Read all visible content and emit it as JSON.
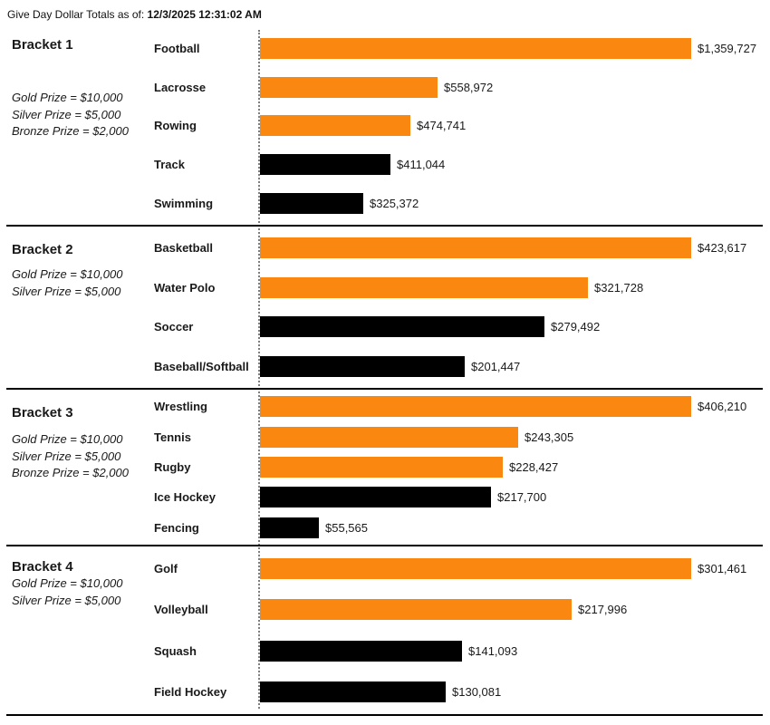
{
  "header": {
    "title_prefix": "Give Day Dollar Totals as of:",
    "timestamp": "12/3/2025 12:31:02 AM"
  },
  "colors": {
    "bar_orange": "#FA870F",
    "bar_black": "#000000",
    "divider": "#000000",
    "axis_dotted": "#7D7D7D",
    "text": "#1A1A1A"
  },
  "chart_data": {
    "type": "bar",
    "orientation": "horizontal",
    "title": "Give Day Dollar Totals",
    "as_of": "12/3/2025 12:31:02 AM",
    "value_format": "USD",
    "scaling": "bars scaled to max value within each bracket",
    "legend": "orange = prize-winning positions, black = others",
    "brackets": [
      {
        "name": "Bracket 1",
        "prizes": [
          "Gold Prize = $10,000",
          "Silver Prize = $5,000",
          "Bronze Prize = $2,000"
        ],
        "bars": [
          {
            "label": "Football",
            "value": 1359727,
            "display": "$1,359,727",
            "color": "orange"
          },
          {
            "label": "Lacrosse",
            "value": 558972,
            "display": "$558,972",
            "color": "orange"
          },
          {
            "label": "Rowing",
            "value": 474741,
            "display": "$474,741",
            "color": "orange"
          },
          {
            "label": "Track",
            "value": 411044,
            "display": "$411,044",
            "color": "black"
          },
          {
            "label": "Swimming",
            "value": 325372,
            "display": "$325,372",
            "color": "black"
          }
        ]
      },
      {
        "name": "Bracket 2",
        "prizes": [
          "Gold Prize = $10,000",
          "Silver Prize = $5,000"
        ],
        "bars": [
          {
            "label": "Basketball",
            "value": 423617,
            "display": "$423,617",
            "color": "orange"
          },
          {
            "label": "Water Polo",
            "value": 321728,
            "display": "$321,728",
            "color": "orange"
          },
          {
            "label": "Soccer",
            "value": 279492,
            "display": "$279,492",
            "color": "black"
          },
          {
            "label": "Baseball/Softball",
            "value": 201447,
            "display": "$201,447",
            "color": "black"
          }
        ]
      },
      {
        "name": "Bracket 3",
        "prizes": [
          "Gold Prize = $10,000",
          "Silver Prize = $5,000",
          "Bronze Prize = $2,000"
        ],
        "bars": [
          {
            "label": "Wrestling",
            "value": 406210,
            "display": "$406,210",
            "color": "orange"
          },
          {
            "label": "Tennis",
            "value": 243305,
            "display": "$243,305",
            "color": "orange"
          },
          {
            "label": "Rugby",
            "value": 228427,
            "display": "$228,427",
            "color": "orange"
          },
          {
            "label": "Ice Hockey",
            "value": 217700,
            "display": "$217,700",
            "color": "black"
          },
          {
            "label": "Fencing",
            "value": 55565,
            "display": "$55,565",
            "color": "black"
          }
        ]
      },
      {
        "name": "Bracket 4",
        "prizes": [
          "Gold Prize = $10,000",
          "Silver Prize = $5,000"
        ],
        "bars": [
          {
            "label": "Golf",
            "value": 301461,
            "display": "$301,461",
            "color": "orange"
          },
          {
            "label": "Volleyball",
            "value": 217996,
            "display": "$217,996",
            "color": "orange"
          },
          {
            "label": "Squash",
            "value": 141093,
            "display": "$141,093",
            "color": "black"
          },
          {
            "label": "Field Hockey",
            "value": 130081,
            "display": "$130,081",
            "color": "black"
          }
        ]
      }
    ]
  }
}
